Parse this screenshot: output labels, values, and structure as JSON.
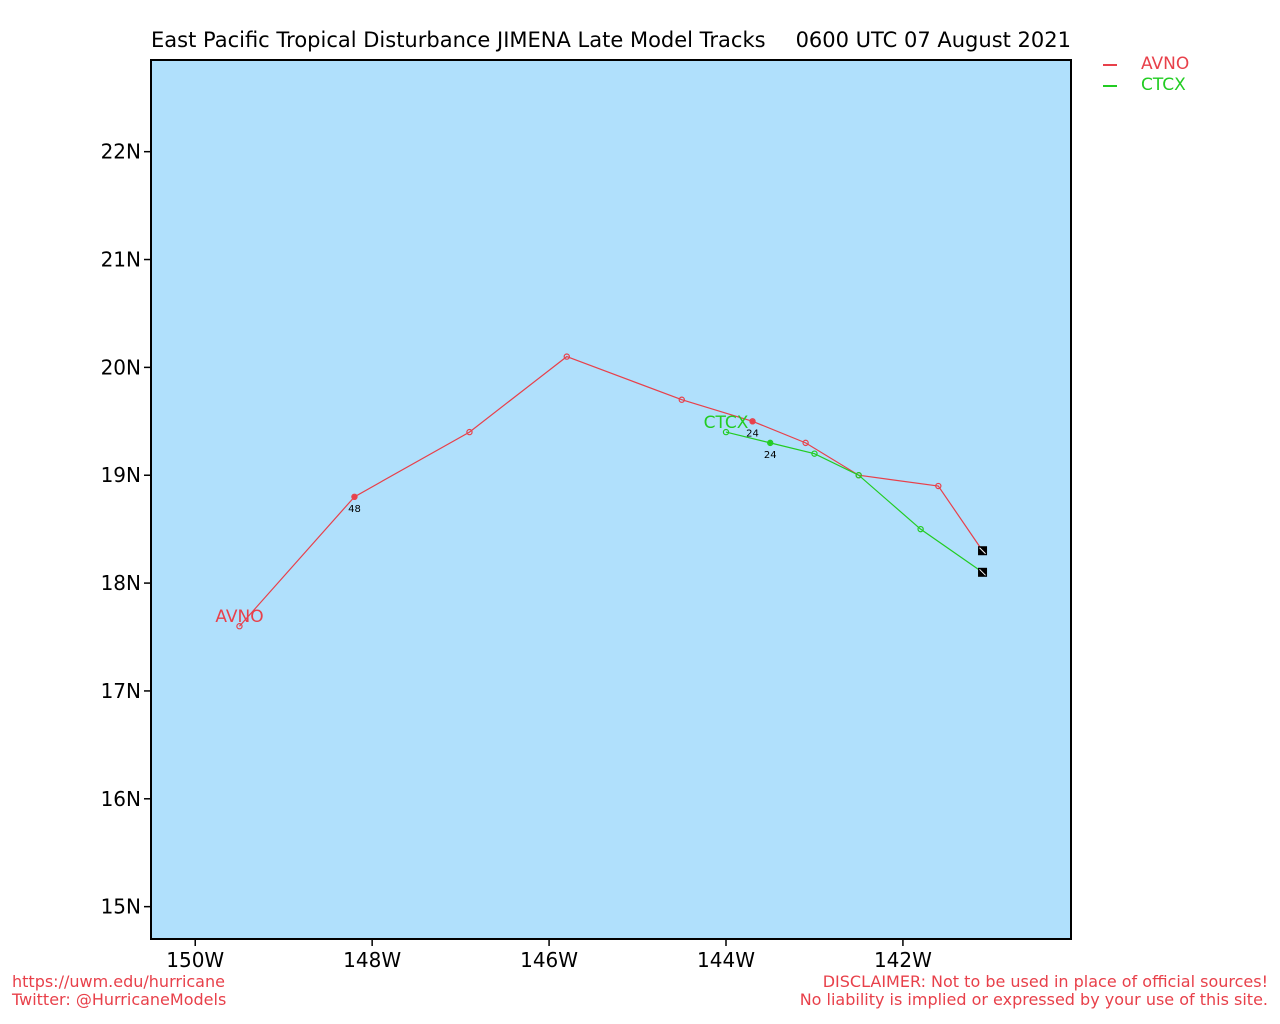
{
  "title": "East Pacific Tropical Disturbance JIMENA Late Model Tracks",
  "datetime": "0600 UTC 07 August 2021",
  "legend": [
    {
      "name": "AVNO",
      "color": "#e8404a"
    },
    {
      "name": "CTCX",
      "color": "#22cc22"
    }
  ],
  "footer": {
    "url": "https://uwm.edu/hurricane",
    "twitter": "Twitter: @HurricaneModels",
    "disclaimer1": "DISCLAIMER: Not to be used in place of official sources!",
    "disclaimer2": "No liability is implied or expressed by your use of this site."
  },
  "colors": {
    "ocean": "#b0e0fc",
    "footer_text": "#e8404a"
  },
  "chart_data": {
    "type": "line",
    "xlim": [
      -150.5,
      -140.1
    ],
    "ylim": [
      14.7,
      22.85
    ],
    "x_ticks": [
      -150,
      -148,
      -146,
      -144,
      -142
    ],
    "x_tick_labels": [
      "150W",
      "148W",
      "146W",
      "144W",
      "142W"
    ],
    "y_ticks": [
      15,
      16,
      17,
      18,
      19,
      20,
      21,
      22
    ],
    "y_tick_labels": [
      "15N",
      "16N",
      "17N",
      "18N",
      "19N",
      "20N",
      "21N",
      "22N"
    ],
    "series": [
      {
        "name": "AVNO",
        "color": "#e8404a",
        "points": [
          [
            -141.1,
            18.3
          ],
          [
            -141.6,
            18.9
          ],
          [
            -142.5,
            19.0
          ],
          [
            -143.1,
            19.3
          ],
          [
            -143.7,
            19.5
          ],
          [
            -144.5,
            19.7
          ],
          [
            -145.8,
            20.1
          ],
          [
            -146.9,
            19.4
          ],
          [
            -148.2,
            18.8
          ],
          [
            -149.5,
            17.6
          ]
        ],
        "hour_labels": [
          {
            "x": -143.7,
            "y": 19.5,
            "text": "24"
          },
          {
            "x": -148.2,
            "y": 18.8,
            "text": "48"
          }
        ]
      },
      {
        "name": "CTCX",
        "color": "#22cc22",
        "points": [
          [
            -141.1,
            18.1
          ],
          [
            -141.8,
            18.5
          ],
          [
            -142.5,
            19.0
          ],
          [
            -143.0,
            19.2
          ],
          [
            -143.5,
            19.3
          ],
          [
            -144.0,
            19.4
          ]
        ],
        "hour_labels": [
          {
            "x": -143.5,
            "y": 19.3,
            "text": "24"
          }
        ]
      }
    ]
  }
}
